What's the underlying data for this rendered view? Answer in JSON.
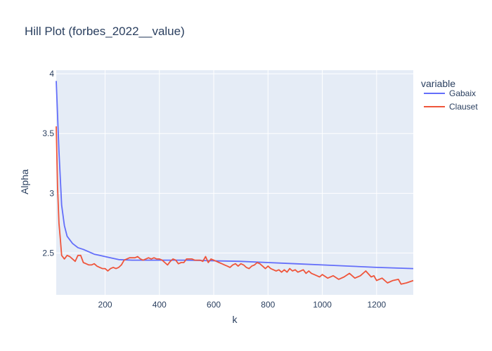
{
  "chart_data": {
    "type": "line",
    "title": "Hill Plot (forbes_2022__value)",
    "xlabel": "k",
    "ylabel": "Alpha",
    "xlim": [
      20,
      1335
    ],
    "ylim": [
      2.15,
      4.03
    ],
    "x_ticks": [
      200,
      400,
      600,
      800,
      1000,
      1200
    ],
    "x_tick_labels": [
      "200",
      "400",
      "600",
      "800",
      "1000",
      "1200"
    ],
    "y_ticks": [
      2.5,
      3,
      3.5,
      4
    ],
    "y_tick_labels": [
      "2.5",
      "3",
      "3.5",
      "4"
    ],
    "grid": true,
    "legend": {
      "title": "variable",
      "position": "top-right"
    },
    "colors": {
      "plot_bg": "#e5ecf6",
      "grid": "#ffffff",
      "Gabaix": "#636efa",
      "Clauset": "#ef553b"
    },
    "series": [
      {
        "name": "Gabaix",
        "color": "#636efa",
        "x": [
          20,
          30,
          40,
          50,
          60,
          80,
          100,
          120,
          140,
          160,
          180,
          200,
          220,
          250,
          300,
          400,
          500,
          600,
          700,
          800,
          900,
          1000,
          1100,
          1200,
          1335
        ],
        "y": [
          3.94,
          3.35,
          2.9,
          2.73,
          2.64,
          2.58,
          2.545,
          2.53,
          2.51,
          2.49,
          2.48,
          2.47,
          2.46,
          2.445,
          2.44,
          2.44,
          2.44,
          2.435,
          2.43,
          2.42,
          2.41,
          2.4,
          2.39,
          2.38,
          2.37
        ]
      },
      {
        "name": "Clauset",
        "color": "#ef553b",
        "x": [
          20,
          25,
          30,
          35,
          40,
          50,
          60,
          70,
          80,
          90,
          100,
          110,
          120,
          130,
          140,
          150,
          160,
          170,
          180,
          190,
          200,
          210,
          220,
          230,
          240,
          250,
          260,
          270,
          280,
          290,
          300,
          310,
          320,
          330,
          340,
          350,
          360,
          370,
          380,
          390,
          400,
          410,
          420,
          430,
          440,
          450,
          460,
          470,
          480,
          490,
          500,
          510,
          520,
          530,
          540,
          550,
          560,
          570,
          580,
          590,
          600,
          610,
          620,
          630,
          640,
          650,
          660,
          670,
          680,
          690,
          700,
          710,
          720,
          730,
          740,
          750,
          760,
          770,
          780,
          790,
          800,
          810,
          820,
          830,
          840,
          850,
          860,
          870,
          880,
          890,
          900,
          910,
          920,
          930,
          940,
          950,
          960,
          970,
          980,
          990,
          1000,
          1020,
          1040,
          1060,
          1080,
          1100,
          1120,
          1140,
          1160,
          1180,
          1190,
          1200,
          1220,
          1240,
          1260,
          1280,
          1290,
          1310,
          1335
        ],
        "y": [
          3.56,
          3.05,
          2.75,
          2.62,
          2.48,
          2.45,
          2.48,
          2.47,
          2.45,
          2.43,
          2.48,
          2.48,
          2.42,
          2.41,
          2.4,
          2.4,
          2.41,
          2.39,
          2.38,
          2.37,
          2.37,
          2.35,
          2.37,
          2.38,
          2.37,
          2.38,
          2.4,
          2.44,
          2.45,
          2.46,
          2.46,
          2.46,
          2.47,
          2.45,
          2.44,
          2.45,
          2.46,
          2.45,
          2.46,
          2.45,
          2.45,
          2.44,
          2.42,
          2.4,
          2.43,
          2.45,
          2.44,
          2.41,
          2.42,
          2.42,
          2.45,
          2.45,
          2.45,
          2.44,
          2.44,
          2.44,
          2.43,
          2.47,
          2.42,
          2.45,
          2.44,
          2.43,
          2.42,
          2.41,
          2.4,
          2.39,
          2.38,
          2.4,
          2.41,
          2.39,
          2.41,
          2.4,
          2.38,
          2.37,
          2.39,
          2.4,
          2.42,
          2.41,
          2.39,
          2.37,
          2.39,
          2.37,
          2.36,
          2.35,
          2.36,
          2.34,
          2.36,
          2.34,
          2.37,
          2.35,
          2.36,
          2.34,
          2.35,
          2.36,
          2.33,
          2.35,
          2.33,
          2.32,
          2.31,
          2.3,
          2.32,
          2.29,
          2.31,
          2.28,
          2.3,
          2.33,
          2.29,
          2.31,
          2.35,
          2.3,
          2.31,
          2.27,
          2.29,
          2.25,
          2.27,
          2.28,
          2.24,
          2.25,
          2.27
        ]
      }
    ]
  }
}
